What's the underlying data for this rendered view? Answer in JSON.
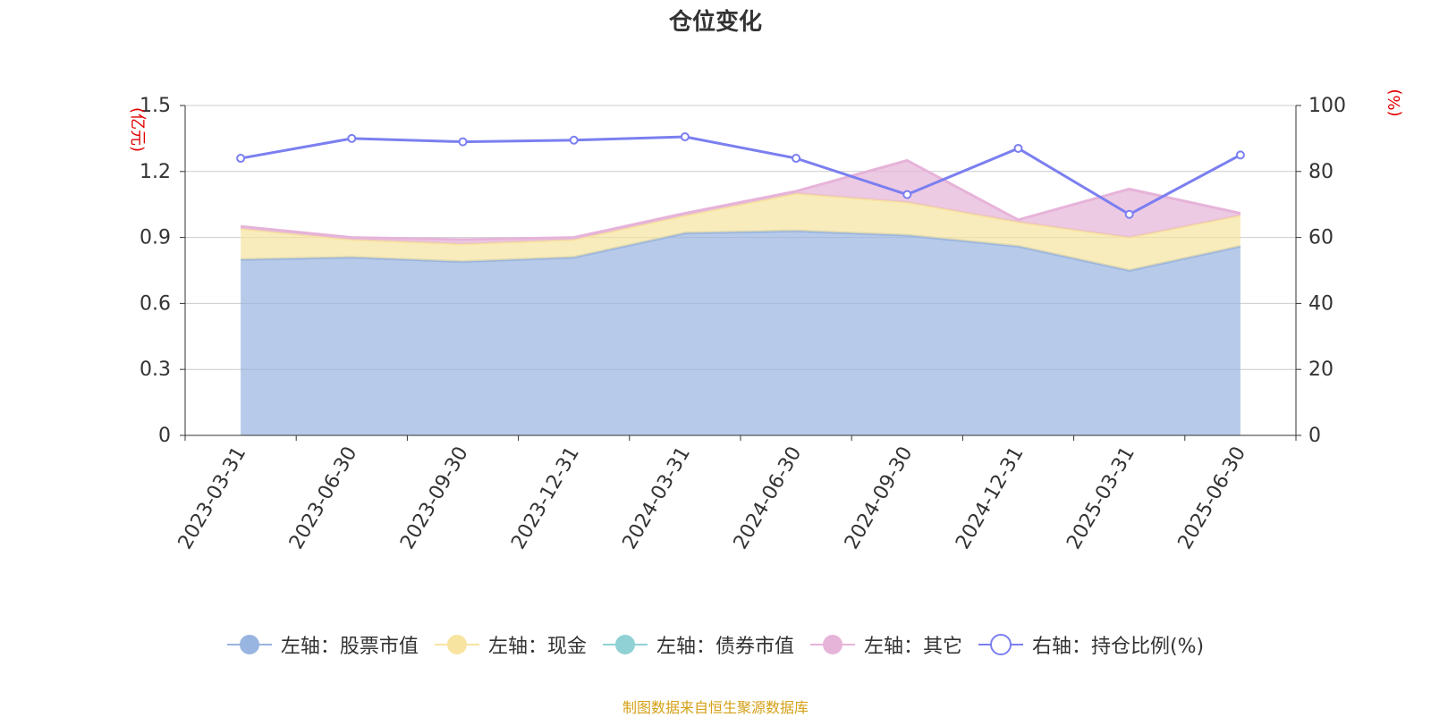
{
  "chart_data": {
    "type": "area",
    "title": "仓位变化",
    "y_left_label": "(亿元)",
    "y_right_label": "(%)",
    "categories": [
      "2023-03-31",
      "2023-06-30",
      "2023-09-30",
      "2023-12-31",
      "2024-03-31",
      "2024-06-30",
      "2024-09-30",
      "2024-12-31",
      "2025-03-31",
      "2025-06-30"
    ],
    "y_left_ticks": [
      "0",
      "0.3",
      "0.6",
      "0.9",
      "1.2",
      "1.5"
    ],
    "y_right_ticks": [
      "0",
      "20",
      "40",
      "60",
      "80",
      "100"
    ],
    "y_left_lim": [
      0,
      1.5
    ],
    "y_right_lim": [
      0,
      100
    ],
    "grid": true,
    "legend_position": "bottom",
    "stacked": true,
    "series": [
      {
        "name": "左轴：股票市值",
        "axis": "left",
        "color": "#98b4e0",
        "values": [
          0.8,
          0.81,
          0.79,
          0.81,
          0.92,
          0.93,
          0.91,
          0.86,
          0.75,
          0.86
        ]
      },
      {
        "name": "左轴：现金",
        "axis": "left",
        "color": "#f7e4a0",
        "values": [
          0.14,
          0.08,
          0.08,
          0.08,
          0.08,
          0.17,
          0.15,
          0.11,
          0.15,
          0.14
        ]
      },
      {
        "name": "左轴：债券市值",
        "axis": "left",
        "color": "#8fd1d4",
        "values": [
          0,
          0,
          0,
          0,
          0,
          0,
          0,
          0,
          0,
          0
        ]
      },
      {
        "name": "左轴：其它",
        "axis": "left",
        "color": "#e6b3d9",
        "values": [
          0.01,
          0.01,
          0.02,
          0.01,
          0.01,
          0.01,
          0.19,
          0.01,
          0.22,
          0.01
        ]
      },
      {
        "name": "右轴：持仓比例(%)",
        "axis": "right",
        "type": "line",
        "color": "#7b7ff0",
        "values": [
          84,
          90,
          89,
          89.5,
          90.5,
          84,
          73,
          87,
          67,
          85
        ]
      }
    ]
  },
  "footer": "制图数据来自恒生聚源数据库"
}
